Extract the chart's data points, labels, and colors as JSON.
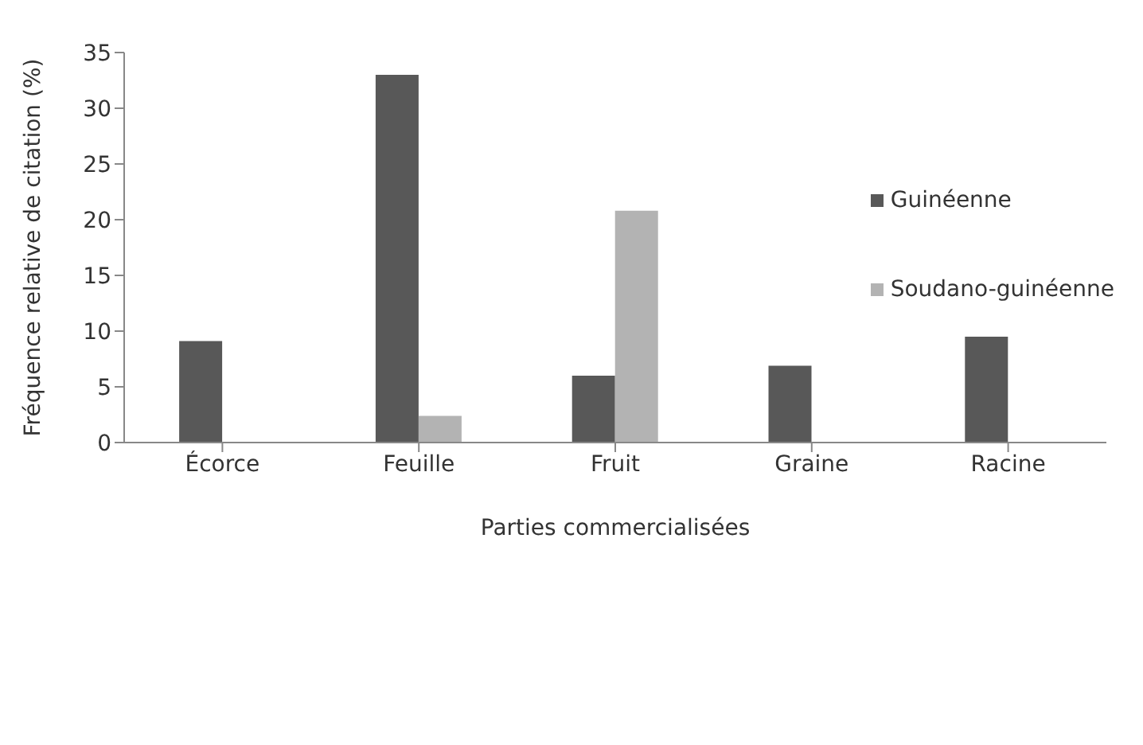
{
  "chart_data": {
    "type": "bar",
    "xlabel": "Parties commercialisées",
    "ylabel": "Fréquence relative de citation (%)",
    "categories": [
      "Écorce",
      "Feuille",
      "Fruit",
      "Graine",
      "Racine"
    ],
    "series": [
      {
        "name": "Guinéenne",
        "color": "#585858",
        "values": [
          9.1,
          33,
          6,
          6.9,
          9.5
        ]
      },
      {
        "name": "Soudano-guinéenne",
        "color": "#b3b3b3",
        "values": [
          0,
          2.4,
          20.8,
          0,
          0
        ]
      }
    ],
    "ylim": [
      0,
      35
    ],
    "yticks": [
      0,
      5,
      10,
      15,
      20,
      25,
      30,
      35
    ],
    "grid": false,
    "legend": "right"
  }
}
